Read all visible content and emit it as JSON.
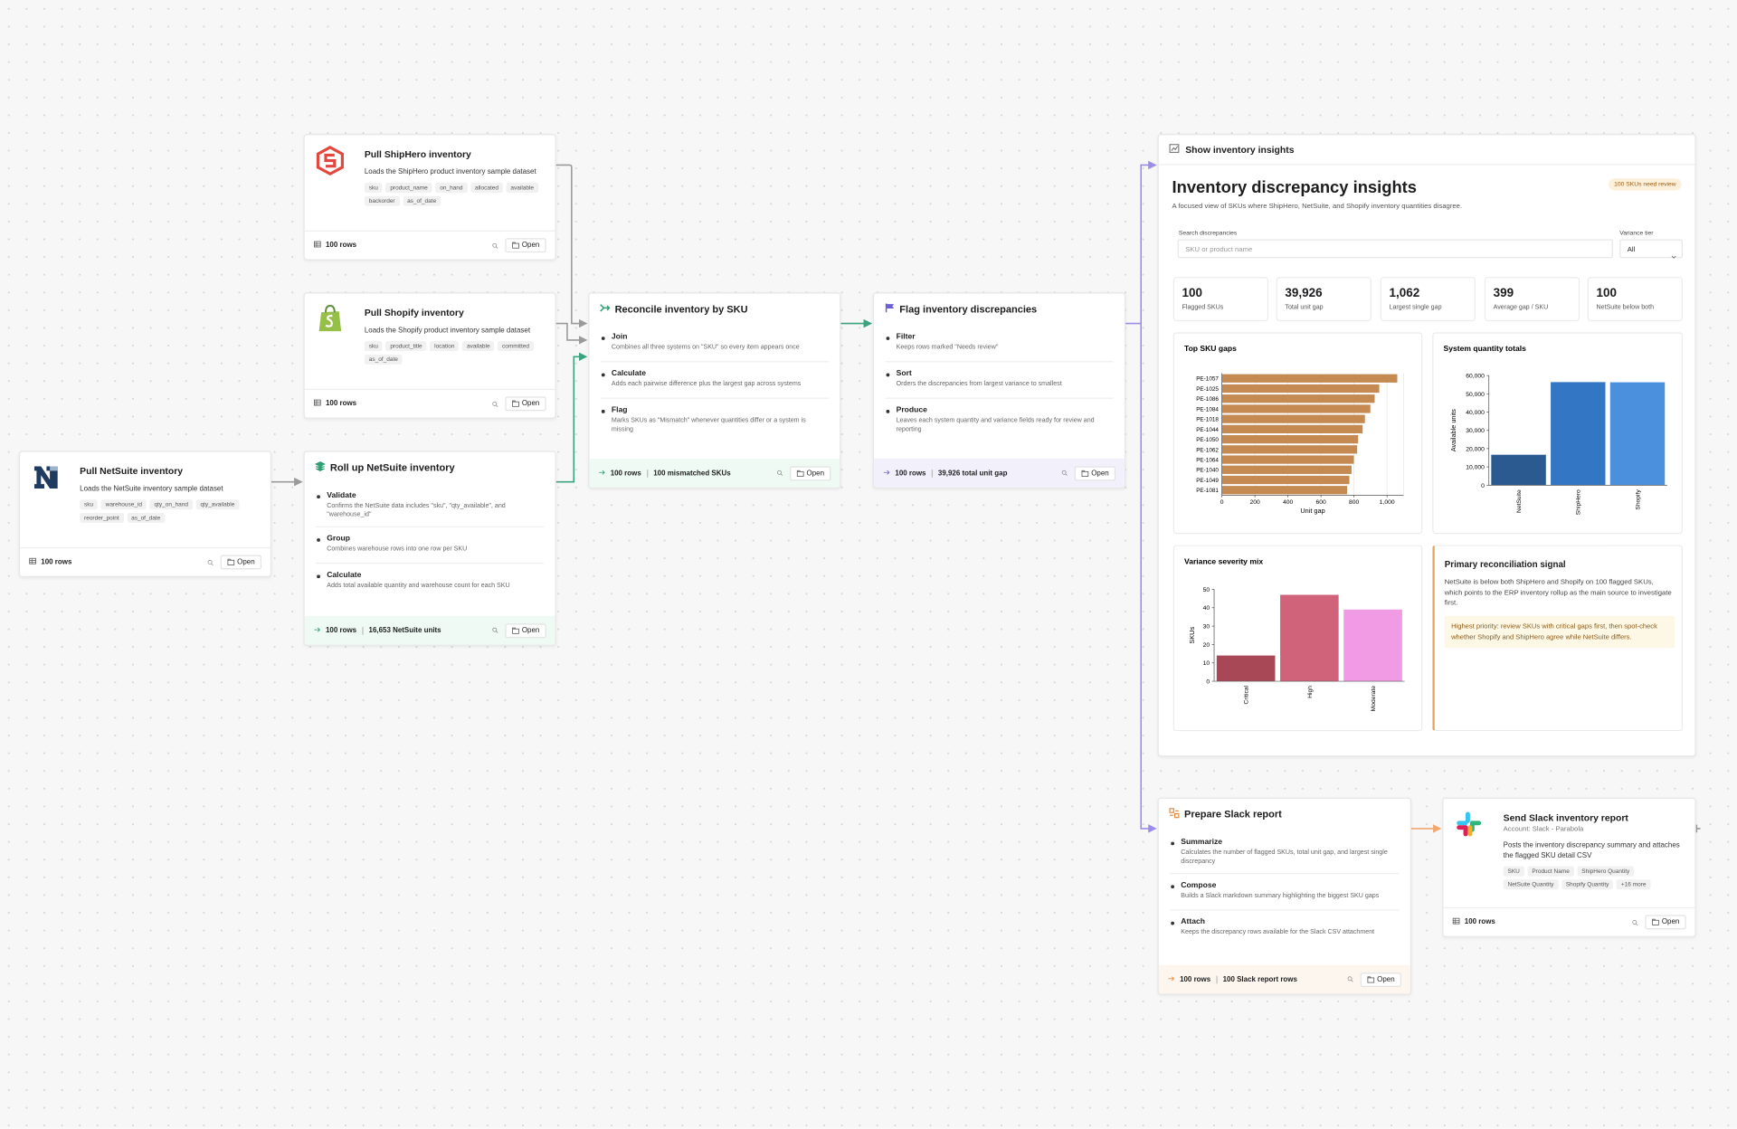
{
  "nodes": [
    {
      "title": "Pull ShipHero inventory",
      "description": "Loads the ShipHero product inventory sample dataset",
      "tags": [
        "sku",
        "product_name",
        "on_hand",
        "allocated",
        "available",
        "backorder",
        "as_of_date"
      ],
      "footer": {
        "rows": "100 rows",
        "button": "Open"
      }
    },
    {
      "title": "Pull Shopify inventory",
      "description": "Loads the Shopify product inventory sample dataset",
      "tags": [
        "sku",
        "product_title",
        "location",
        "available",
        "committed",
        "as_of_date"
      ],
      "footer": {
        "rows": "100 rows",
        "button": "Open"
      }
    },
    {
      "title": "Pull NetSuite inventory",
      "description": "Loads the NetSuite inventory sample dataset",
      "tags": [
        "sku",
        "warehouse_id",
        "qty_on_hand",
        "qty_available",
        "reorder_point",
        "as_of_date"
      ],
      "footer": {
        "rows": "100 rows",
        "button": "Open"
      }
    },
    {
      "title": "Roll up NetSuite inventory",
      "steps": [
        {
          "name": "Validate",
          "description": "Confirms the NetSuite data includes \"sku\", \"qty_available\", and \"warehouse_id\""
        },
        {
          "name": "Group",
          "description": "Combines warehouse rows into one row per SKU"
        },
        {
          "name": "Calculate",
          "description": "Adds total available quantity and warehouse count for each SKU"
        }
      ],
      "footer": {
        "rows": "100 rows",
        "stat": "16,653 NetSuite units",
        "button": "Open"
      }
    },
    {
      "title": "Reconcile inventory by SKU",
      "steps": [
        {
          "name": "Join",
          "description": "Combines all three systems on \"SKU\" so every item appears once"
        },
        {
          "name": "Calculate",
          "description": "Adds each pairwise difference plus the largest gap across systems"
        },
        {
          "name": "Flag",
          "description": "Marks SKUs as \"Mismatch\" whenever quantities differ or a system is missing"
        }
      ],
      "footer": {
        "rows": "100 rows",
        "stat": "100 mismatched SKUs",
        "button": "Open"
      }
    },
    {
      "title": "Flag inventory discrepancies",
      "steps": [
        {
          "name": "Filter",
          "description": "Keeps rows marked \"Needs review\""
        },
        {
          "name": "Sort",
          "description": "Orders the discrepancies from largest variance to smallest"
        },
        {
          "name": "Produce",
          "description": "Leaves each system quantity and variance fields ready for review and reporting"
        }
      ],
      "footer": {
        "rows": "100 rows",
        "stat": "39,926 total unit gap",
        "button": "Open"
      }
    },
    {
      "title": "Prepare Slack report",
      "steps": [
        {
          "name": "Summarize",
          "description": "Calculates the number of flagged SKUs, total unit gap, and largest single discrepancy"
        },
        {
          "name": "Compose",
          "description": "Builds a Slack markdown summary highlighting the biggest SKU gaps"
        },
        {
          "name": "Attach",
          "description": "Keeps the discrepancy rows available for the Slack CSV attachment"
        }
      ],
      "footer": {
        "rows": "100 rows",
        "stat": "100 Slack report rows",
        "button": "Open"
      }
    },
    {
      "title": "Send Slack inventory report",
      "subtitle": "Account: Slack - Parabola",
      "description": "Posts the inventory discrepancy summary and attaches the flagged SKU detail CSV",
      "tags": [
        "SKU",
        "Product Name",
        "ShipHero Quantity",
        "NetSuite Quantity",
        "Shopify Quantity",
        "+16 more"
      ],
      "footer": {
        "rows": "100 rows",
        "button": "Open"
      }
    }
  ],
  "insights": {
    "header": "Show inventory insights",
    "title": "Inventory discrepancy insights",
    "badge": "100 SKUs need review",
    "subtitle": "A focused view of SKUs where ShipHero, NetSuite, and Shopify inventory quantities disagree.",
    "search_label": "Search discrepancies",
    "search_placeholder": "SKU or product name",
    "tier_label": "Variance tier",
    "tier_value": "All",
    "stats": [
      {
        "value": "100",
        "label": "Flagged SKUs"
      },
      {
        "value": "39,926",
        "label": "Total unit gap"
      },
      {
        "value": "1,062",
        "label": "Largest single gap"
      },
      {
        "value": "399",
        "label": "Average gap / SKU"
      },
      {
        "value": "100",
        "label": "NetSuite below both"
      }
    ],
    "charts": [
      {
        "type": "hbar",
        "title": "Top SKU gaps",
        "categories": [
          "PE-1057",
          "PE-1025",
          "PE-1086",
          "PE-1084",
          "PE-1018",
          "PE-1044",
          "PE-1050",
          "PE-1062",
          "PE-1064",
          "PE-1040",
          "PE-1049",
          "PE-1081"
        ],
        "values": [
          1062,
          953,
          925,
          899,
          866,
          852,
          825,
          819,
          799,
          785,
          772,
          758
        ],
        "color": "#c58a52",
        "xlim": [
          0,
          1100
        ],
        "xticks": [
          0,
          200,
          400,
          600,
          800,
          {
            "value": 1000,
            "label": "1,000"
          }
        ],
        "xlabel": "Unit gap",
        "grid": true
      },
      {
        "type": "bar",
        "title": "System quantity totals",
        "categories": [
          "NetSuite",
          "ShipHero",
          "Shopify"
        ],
        "values": [
          16653,
          56400,
          56300
        ],
        "colors": [
          "#2b5a91",
          "#3276c4",
          "#4a90dc"
        ],
        "ylim": [
          0,
          60000
        ],
        "yticks": [
          0,
          {
            "value": 10000,
            "label": "10,000"
          },
          {
            "value": 20000,
            "label": "20,000"
          },
          {
            "value": 30000,
            "label": "30,000"
          },
          {
            "value": 40000,
            "label": "40,000"
          },
          {
            "value": 50000,
            "label": "50,000"
          },
          {
            "value": 60000,
            "label": "60,000"
          }
        ],
        "ylabel": "Available units",
        "grid": false
      },
      {
        "type": "bar",
        "title": "Variance severity mix",
        "categories": [
          "Critical",
          "High",
          "Moderate"
        ],
        "values": [
          14,
          47,
          39
        ],
        "colors": [
          "#a84857",
          "#d0627a",
          "#f09be3"
        ],
        "ylim": [
          0,
          50
        ],
        "yticks": [
          0,
          10,
          20,
          30,
          40,
          50
        ],
        "ylabel": "SKUs",
        "grid": false
      }
    ],
    "signal": {
      "title": "Primary reconciliation signal",
      "text": "NetSuite is below both ShipHero and Shopify on 100 flagged SKUs, which points to the ERP inventory rollup as the main source to investigate first.",
      "callout": "Highest priority: review SKUs with critical gaps first, then spot-check whether Shopify and ShipHero agree while NetSuite differs."
    }
  }
}
